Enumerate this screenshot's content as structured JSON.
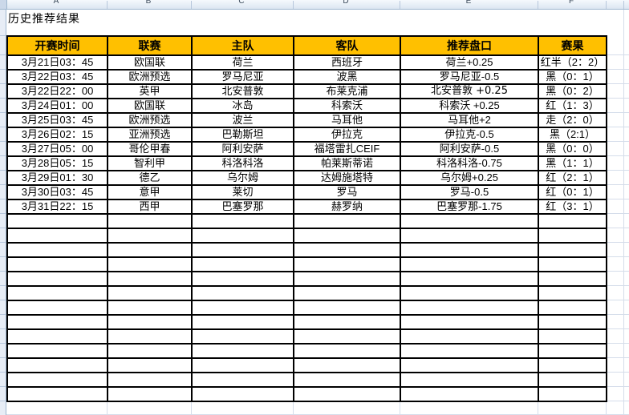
{
  "title": "历史推荐结果",
  "sheet": {
    "column_letters": [
      "A",
      "B",
      "C",
      "D",
      "E",
      "F"
    ]
  },
  "table": {
    "headers": [
      "开赛时间",
      "联赛",
      "主队",
      "客队",
      "推荐盘口",
      "赛果"
    ],
    "rows": [
      {
        "time": "3月21日03：45",
        "league": "欧国联",
        "home": "荷兰",
        "away": "西班牙",
        "handicap": "荷兰+0.25",
        "result": "红半（2：2）",
        "result_color": "red"
      },
      {
        "time": "3月22日03：45",
        "league": "欧洲预选",
        "home": "罗马尼亚",
        "away": "波黑",
        "handicap": "罗马尼亚-0.5",
        "result": "黑（0：1）",
        "result_color": "black"
      },
      {
        "time": "3月22日22：00",
        "league": "英甲",
        "home": "北安普敦",
        "away": "布莱克浦",
        "handicap": "北安普敦 +0.25",
        "result": "黑（0：2）",
        "result_color": "black",
        "handicap_style": "alt"
      },
      {
        "time": "3月24日01：00",
        "league": "欧国联",
        "home": "冰岛",
        "away": "科索沃",
        "handicap": "科索沃 +0.25",
        "result": "红（1：3）",
        "result_color": "red"
      },
      {
        "time": "3月25日03：45",
        "league": "欧洲预选",
        "home": "波兰",
        "away": "马耳他",
        "handicap": "马耳他+2",
        "result": "走（2：0）",
        "result_color": "red"
      },
      {
        "time": "3月26日02：15",
        "league": "亚洲预选",
        "home": "巴勒斯坦",
        "away": "伊拉克",
        "handicap": "伊拉克-0.5",
        "result": "黑（2:1）",
        "result_color": "black"
      },
      {
        "time": "3月27日05：00",
        "league": "哥伦甲春",
        "home": "阿利安萨",
        "away": "福塔雷扎CEIF",
        "handicap": "阿利安萨-0.5",
        "result": "黑（0：0）",
        "result_color": "black"
      },
      {
        "time": "3月28日05：15",
        "league": "智利甲",
        "home": "科洛科洛",
        "away": "帕莱斯蒂诺",
        "handicap": "科洛科洛-0.75",
        "result": "黑（1：1）",
        "result_color": "black"
      },
      {
        "time": "3月29日01：30",
        "league": "德乙",
        "home": "乌尔姆",
        "away": "达姆施塔特",
        "handicap": "乌尔姆+0.25",
        "result": "红（2：1）",
        "result_color": "red"
      },
      {
        "time": "3月30日03：45",
        "league": "意甲",
        "home": "莱切",
        "away": "罗马",
        "handicap": "罗马-0.5",
        "result": "红（0：1）",
        "result_color": "red"
      },
      {
        "time": "3月31日22：15",
        "league": "西甲",
        "home": "巴塞罗那",
        "away": "赫罗纳",
        "handicap": "巴塞罗那-1.75",
        "result": "红（3：1）",
        "result_color": "red"
      }
    ],
    "empty_row_count": 13
  },
  "colors": {
    "header_bg": "#FFC000",
    "table_border": "#000000",
    "result_red": "#FF0000",
    "text": "#000000",
    "handicap_alt": "#2F4F4F",
    "gridline": "#D5DDEA",
    "frame_bg": "#E7EDF6",
    "frame_border": "#9EB6CE"
  }
}
